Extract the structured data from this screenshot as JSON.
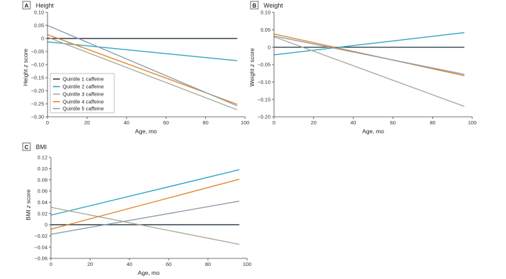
{
  "colors": {
    "q1": "#2b3f4a",
    "q2": "#29a3c3",
    "q3": "#a9aa9c",
    "q4": "#e0852b",
    "q5": "#8b9cab"
  },
  "legend": {
    "entries": [
      {
        "label": "Quintile 1 caffeine",
        "color_key": "q1"
      },
      {
        "label": "Quintile 2 caffeine",
        "color_key": "q2"
      },
      {
        "label": "Quintile 3 caffeine",
        "color_key": "q3"
      },
      {
        "label": "Quintile 4 caffeine",
        "color_key": "q4"
      },
      {
        "label": "Quintile 5 caffeine",
        "color_key": "q5"
      }
    ]
  },
  "chart_data": [
    {
      "type": "line",
      "panel_letter": "A",
      "title": "Height",
      "xlabel": "Age, mo",
      "ylabel_pre": "Height ",
      "ylabel_italic": "z",
      "ylabel_post": " score",
      "xlim": [
        0,
        100
      ],
      "ylim": [
        -0.3,
        0.1
      ],
      "xticks": [
        0,
        20,
        40,
        60,
        80,
        100
      ],
      "xtick_labels": [
        "0",
        "20",
        "40",
        "60",
        "80",
        "100"
      ],
      "yticks": [
        0.1,
        0.05,
        0,
        -0.05,
        -0.1,
        -0.15,
        -0.2,
        -0.25,
        -0.3
      ],
      "ytick_labels": [
        "0.10",
        "0.05",
        "0",
        "−0.05",
        "−0.10",
        "−0.15",
        "−0.20",
        "−0.25",
        "−0.30"
      ],
      "legend_position": "left",
      "series": [
        {
          "name": "Quintile 1 caffeine",
          "color_key": "q1",
          "x": [
            0,
            96
          ],
          "y": [
            0.0,
            0.0
          ]
        },
        {
          "name": "Quintile 2 caffeine",
          "color_key": "q2",
          "x": [
            0,
            96
          ],
          "y": [
            -0.013,
            -0.085
          ]
        },
        {
          "name": "Quintile 3 caffeine",
          "color_key": "q3",
          "x": [
            0,
            96
          ],
          "y": [
            0.005,
            -0.273
          ]
        },
        {
          "name": "Quintile 4 caffeine",
          "color_key": "q4",
          "x": [
            0,
            96
          ],
          "y": [
            0.015,
            -0.252
          ]
        },
        {
          "name": "Quintile 5 caffeine",
          "color_key": "q5",
          "x": [
            0,
            96
          ],
          "y": [
            0.05,
            -0.258
          ]
        }
      ]
    },
    {
      "type": "line",
      "panel_letter": "B",
      "title": "Weight",
      "xlabel": "Age, mo",
      "ylabel_pre": "Weight ",
      "ylabel_italic": "z",
      "ylabel_post": " score",
      "xlim": [
        0,
        100
      ],
      "ylim": [
        -0.2,
        0.1
      ],
      "xticks": [
        0,
        20,
        40,
        60,
        80,
        100
      ],
      "xtick_labels": [
        "0",
        "20",
        "40",
        "60",
        "80",
        "100"
      ],
      "yticks": [
        0.1,
        0.05,
        0,
        -0.05,
        -0.1,
        -0.15,
        -0.2
      ],
      "ytick_labels": [
        "0.10",
        "0.05",
        "0",
        "−0.05",
        "−0.10",
        "−0.15",
        "−0.20"
      ],
      "series": [
        {
          "name": "Quintile 1 caffeine",
          "color_key": "q1",
          "x": [
            0,
            96
          ],
          "y": [
            0.0,
            0.0
          ]
        },
        {
          "name": "Quintile 2 caffeine",
          "color_key": "q2",
          "x": [
            0,
            96
          ],
          "y": [
            -0.022,
            0.042
          ]
        },
        {
          "name": "Quintile 3 caffeine",
          "color_key": "q3",
          "x": [
            0,
            96
          ],
          "y": [
            0.03,
            -0.17
          ]
        },
        {
          "name": "Quintile 4 caffeine",
          "color_key": "q4",
          "x": [
            0,
            96
          ],
          "y": [
            0.038,
            -0.082
          ]
        },
        {
          "name": "Quintile 5 caffeine",
          "color_key": "q5",
          "x": [
            0,
            96
          ],
          "y": [
            0.032,
            -0.078
          ]
        }
      ]
    },
    {
      "type": "line",
      "panel_letter": "C",
      "title": "BMI",
      "xlabel": "Age, mo",
      "ylabel_pre": "BMI ",
      "ylabel_italic": "z",
      "ylabel_post": " score",
      "xlim": [
        0,
        100
      ],
      "ylim": [
        -0.06,
        0.12
      ],
      "xticks": [
        0,
        20,
        40,
        60,
        80,
        100
      ],
      "xtick_labels": [
        "0",
        "20",
        "40",
        "60",
        "80",
        "100"
      ],
      "yticks": [
        0.12,
        0.1,
        0.08,
        0.06,
        0.04,
        0.02,
        0,
        -0.02,
        -0.04,
        -0.06
      ],
      "ytick_labels": [
        "0.12",
        "0.10",
        "0.08",
        "0.06",
        "0.04",
        "0.02",
        "0",
        "−0.02",
        "−0.04",
        "−0.06"
      ],
      "series": [
        {
          "name": "Quintile 1 caffeine",
          "color_key": "q1",
          "x": [
            0,
            96
          ],
          "y": [
            0.0,
            0.0
          ]
        },
        {
          "name": "Quintile 2 caffeine",
          "color_key": "q2",
          "x": [
            0,
            96
          ],
          "y": [
            0.017,
            0.098
          ]
        },
        {
          "name": "Quintile 3 caffeine",
          "color_key": "q3",
          "x": [
            0,
            96
          ],
          "y": [
            0.031,
            -0.035
          ]
        },
        {
          "name": "Quintile 4 caffeine",
          "color_key": "q4",
          "x": [
            0,
            96
          ],
          "y": [
            -0.008,
            0.081
          ]
        },
        {
          "name": "Quintile 5 caffeine",
          "color_key": "q5",
          "x": [
            0,
            96
          ],
          "y": [
            -0.017,
            0.042
          ]
        }
      ]
    }
  ]
}
